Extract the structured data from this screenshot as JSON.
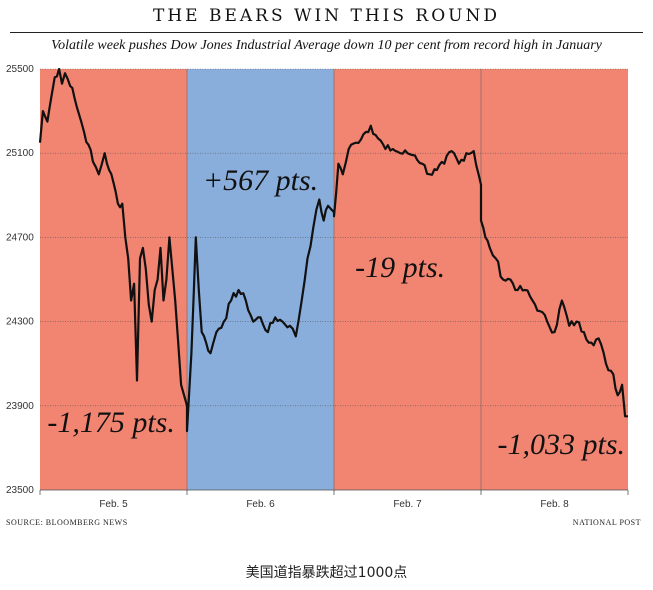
{
  "header": {
    "title": "THE BEARS WIN THIS ROUND",
    "subtitle": "Volatile week pushes Dow Jones Industrial Average down 10 per cent from record high in January"
  },
  "footer": {
    "source": "SOURCE: BLOOMBERG NEWS",
    "credit": "NATIONAL POST",
    "caption": "美国道指暴跌超过1000点"
  },
  "colors": {
    "down_region": "#f28572",
    "up_region": "#8aaedc",
    "line": "#111111"
  },
  "chart_data": {
    "type": "line",
    "title": "THE BEARS WIN THIS ROUND",
    "subtitle": "Volatile week pushes Dow Jones Industrial Average down 10 per cent from record high in January",
    "ylim": [
      23500,
      25500
    ],
    "yticks": [
      25500,
      25100,
      24700,
      24300,
      23900,
      23500
    ],
    "grid": true,
    "days": [
      {
        "label": "Feb. 5",
        "direction": "down",
        "annotation": "-1,175 pts."
      },
      {
        "label": "Feb. 6",
        "direction": "up",
        "annotation": "+567 pts."
      },
      {
        "label": "Feb. 7",
        "direction": "down",
        "annotation": "-19 pts."
      },
      {
        "label": "Feb. 8",
        "direction": "down",
        "annotation": "-1,033 pts."
      }
    ],
    "series": [
      {
        "name": "Dow Jones Industrial Average (intraday)",
        "x": [
          0,
          0.02,
          0.05,
          0.08,
          0.1,
          0.13,
          0.15,
          0.17,
          0.19,
          0.22,
          0.25,
          0.28,
          0.3,
          0.33,
          0.36,
          0.4,
          0.44,
          0.47,
          0.5,
          0.53,
          0.56,
          0.58,
          0.6,
          0.62,
          0.64,
          0.66,
          0.68,
          0.7,
          0.72,
          0.74,
          0.76,
          0.78,
          0.8,
          0.82,
          0.84,
          0.86,
          0.88,
          0.9,
          0.92,
          0.94,
          0.96,
          0.98,
          1.0,
          1.0,
          1.03,
          1.06,
          1.08,
          1.1,
          1.13,
          1.16,
          1.2,
          1.25,
          1.3,
          1.35,
          1.4,
          1.45,
          1.5,
          1.55,
          1.6,
          1.65,
          1.7,
          1.74,
          1.78,
          1.82,
          1.86,
          1.9,
          1.93,
          1.96,
          2.0,
          2.0,
          2.03,
          2.06,
          2.1,
          2.15,
          2.2,
          2.25,
          2.3,
          2.35,
          2.4,
          2.45,
          2.5,
          2.55,
          2.6,
          2.65,
          2.7,
          2.75,
          2.8,
          2.85,
          2.9,
          2.95,
          3.0,
          3.0,
          3.03,
          3.06,
          3.1,
          3.15,
          3.2,
          3.25,
          3.3,
          3.35,
          3.4,
          3.45,
          3.5,
          3.55,
          3.6,
          3.65,
          3.7,
          3.75,
          3.8,
          3.85,
          3.9,
          3.93,
          3.96,
          3.98,
          4.0
        ],
        "values": [
          25150,
          25300,
          25250,
          25380,
          25460,
          25500,
          25430,
          25480,
          25450,
          25410,
          25320,
          25250,
          25200,
          25140,
          25060,
          25000,
          25100,
          25020,
          24960,
          24860,
          24860,
          24700,
          24600,
          24400,
          24480,
          24020,
          24600,
          24650,
          24550,
          24380,
          24300,
          24450,
          24500,
          24650,
          24400,
          24500,
          24700,
          24550,
          24400,
          24200,
          24000,
          23950,
          23900,
          23780,
          24150,
          24700,
          24450,
          24250,
          24200,
          24150,
          24250,
          24300,
          24400,
          24450,
          24400,
          24300,
          24320,
          24250,
          24320,
          24300,
          24280,
          24230,
          24400,
          24600,
          24750,
          24880,
          24780,
          24850,
          24820,
          24800,
          25050,
          25000,
          25120,
          25150,
          25190,
          25230,
          25170,
          25120,
          25120,
          25100,
          25100,
          25090,
          25050,
          25000,
          25020,
          25050,
          25110,
          25050,
          25100,
          25110,
          24950,
          24780,
          24700,
          24650,
          24600,
          24500,
          24500,
          24450,
          24450,
          24400,
          24350,
          24300,
          24250,
          24400,
          24280,
          24300,
          24250,
          24200,
          24220,
          24100,
          24050,
          23950,
          24000,
          23850,
          23850
        ]
      }
    ]
  }
}
